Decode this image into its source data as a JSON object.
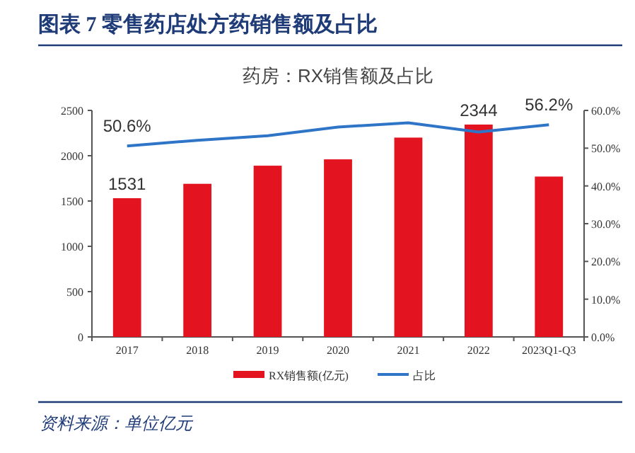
{
  "chart_data": {
    "type": "bar",
    "title": "图表 7   零售药店处方药销售额及占比",
    "subtitle": "药房：RX销售额及占比",
    "categories": [
      "2017",
      "2018",
      "2019",
      "2020",
      "2021",
      "2022",
      "2023Q1-Q3"
    ],
    "series": [
      {
        "name": "RX销售额(亿元)",
        "color": "#e3141f",
        "values": [
          1531,
          1690,
          1890,
          1960,
          2200,
          2344,
          1770
        ],
        "value_labels": [
          "1531",
          null,
          null,
          null,
          null,
          "2344",
          null
        ]
      },
      {
        "name": "占比",
        "type": "line",
        "axis": "y2",
        "color": "#2e75c8",
        "values": [
          50.6,
          52.1,
          53.3,
          55.6,
          56.7,
          54.3,
          56.2
        ],
        "value_labels": [
          "50.6%",
          null,
          null,
          null,
          null,
          null,
          "56.2%"
        ]
      }
    ],
    "ylim": [
      0,
      2500
    ],
    "yticks": [
      0,
      500,
      1000,
      1500,
      2000,
      2500
    ],
    "y2lim": [
      0,
      60
    ],
    "y2ticks": [
      {
        "value": 0,
        "label": "0.0%"
      },
      {
        "value": 10,
        "label": "10.0%"
      },
      {
        "value": 20,
        "label": "20.0%"
      },
      {
        "value": 30,
        "label": "30.0%"
      },
      {
        "value": 40,
        "label": "40.0%"
      },
      {
        "value": 50,
        "label": "50.0%"
      },
      {
        "value": 60,
        "label": "60.0%"
      }
    ],
    "legend": "bottom",
    "grid": false,
    "marker": "none",
    "annotations": [
      "资料来源：单位亿元"
    ]
  }
}
